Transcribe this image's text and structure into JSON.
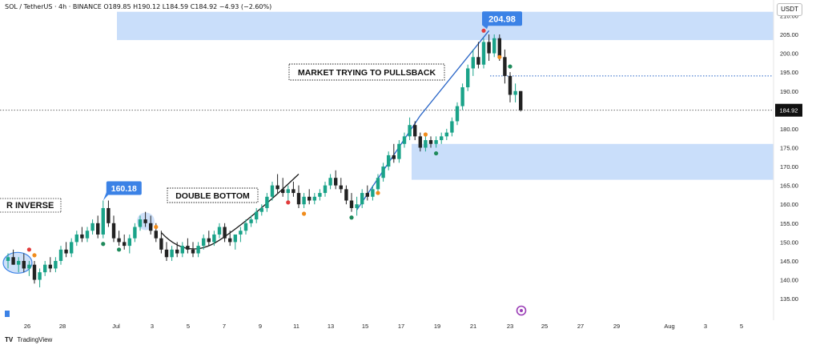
{
  "header": {
    "symbol": "SOL / TetherUS · 4h · BINANCE",
    "ohlc": "O189.85 H190.12 L184.59 C184.92 −4.93 (−2.60%)"
  },
  "currency_label": "USDT",
  "brand": "TradingView",
  "colors": {
    "bull": "#1aa389",
    "bear": "#222222",
    "zone": "#c9defa",
    "callout": "#3b82e6",
    "trendline": "#2965c7",
    "arc": "#1a1a1a",
    "marker_red": "#e23b3b",
    "marker_orange": "#f08c1c",
    "marker_green": "#1f8a5b"
  },
  "annotations": {
    "high_label": "204.98",
    "low_label": "160.18",
    "double_bottom": "DOUBLE BOTTOM",
    "pullback": "MARKET TRYING TO PULLSBACK",
    "inverse": "R INVERSE",
    "last_price": "184.92"
  },
  "chart_data": {
    "type": "candlestick",
    "interval": "4h",
    "ylim": [
      131,
      212
    ],
    "y_ticks": [
      "210.00",
      "205.00",
      "200.00",
      "195.00",
      "190.00",
      "185.00",
      "180.00",
      "175.00",
      "170.00",
      "165.00",
      "160.00",
      "155.00",
      "150.00",
      "145.00",
      "140.00",
      "135.00"
    ],
    "x_ticks": [
      "26",
      "28",
      "Jul",
      "3",
      "5",
      "7",
      "9",
      "11",
      "13",
      "15",
      "17",
      "19",
      "21",
      "23",
      "25",
      "27",
      "29",
      "Aug",
      "3",
      "5"
    ],
    "zones": [
      [
        203.5,
        211
      ],
      [
        166.5,
        176
      ]
    ],
    "candles": [
      [
        145,
        147,
        143,
        146
      ],
      [
        146,
        148,
        144,
        144
      ],
      [
        144,
        146,
        142,
        145
      ],
      [
        145,
        147,
        142,
        143
      ],
      [
        143,
        145,
        141,
        144
      ],
      [
        144,
        145,
        139,
        140
      ],
      [
        140,
        143,
        138,
        142
      ],
      [
        142,
        145,
        141,
        144
      ],
      [
        144,
        146,
        142,
        143
      ],
      [
        143,
        146,
        142,
        145
      ],
      [
        145,
        149,
        144,
        148
      ],
      [
        148,
        150,
        146,
        147
      ],
      [
        147,
        151,
        146,
        150
      ],
      [
        150,
        153,
        149,
        152
      ],
      [
        152,
        154,
        150,
        151
      ],
      [
        151,
        154,
        150,
        153
      ],
      [
        153,
        156,
        152,
        155
      ],
      [
        155,
        157,
        151,
        152
      ],
      [
        152,
        161,
        151,
        159
      ],
      [
        159,
        161,
        154,
        155
      ],
      [
        155,
        157,
        150,
        151
      ],
      [
        151,
        153,
        149,
        150
      ],
      [
        150,
        152,
        148,
        149
      ],
      [
        149,
        152,
        147,
        151
      ],
      [
        151,
        155,
        150,
        154
      ],
      [
        154,
        157,
        153,
        156
      ],
      [
        156,
        158,
        154,
        155
      ],
      [
        155,
        157,
        152,
        153
      ],
      [
        153,
        155,
        150,
        151
      ],
      [
        151,
        153,
        147,
        148
      ],
      [
        148,
        150,
        145,
        146
      ],
      [
        146,
        149,
        145,
        148
      ],
      [
        148,
        150,
        146,
        147
      ],
      [
        147,
        150,
        146,
        149
      ],
      [
        149,
        151,
        147,
        148
      ],
      [
        148,
        150,
        146,
        147
      ],
      [
        147,
        150,
        146,
        149
      ],
      [
        149,
        152,
        148,
        151
      ],
      [
        151,
        153,
        149,
        150
      ],
      [
        150,
        153,
        149,
        152
      ],
      [
        152,
        155,
        151,
        154
      ],
      [
        154,
        155,
        150,
        151
      ],
      [
        151,
        153,
        149,
        150
      ],
      [
        150,
        152,
        148,
        152
      ],
      [
        152,
        154,
        150,
        153
      ],
      [
        153,
        156,
        152,
        155
      ],
      [
        155,
        157,
        154,
        156
      ],
      [
        156,
        159,
        155,
        158
      ],
      [
        158,
        160,
        157,
        159
      ],
      [
        159,
        163,
        158,
        162
      ],
      [
        162,
        166,
        161,
        165
      ],
      [
        165,
        168,
        163,
        164
      ],
      [
        164,
        167,
        162,
        163
      ],
      [
        163,
        165,
        161,
        164
      ],
      [
        164,
        166,
        162,
        163
      ],
      [
        163,
        165,
        159,
        160
      ],
      [
        160,
        163,
        159,
        162
      ],
      [
        162,
        164,
        160,
        161
      ],
      [
        161,
        163,
        160,
        162
      ],
      [
        162,
        164,
        161,
        163
      ],
      [
        163,
        166,
        162,
        165
      ],
      [
        165,
        168,
        164,
        167
      ],
      [
        167,
        169,
        164,
        165
      ],
      [
        165,
        167,
        163,
        164
      ],
      [
        164,
        165,
        160,
        161
      ],
      [
        161,
        163,
        158,
        159
      ],
      [
        159,
        162,
        157,
        160
      ],
      [
        160,
        164,
        159,
        163
      ],
      [
        163,
        165,
        161,
        162
      ],
      [
        162,
        165,
        161,
        164
      ],
      [
        164,
        168,
        163,
        167
      ],
      [
        167,
        171,
        166,
        170
      ],
      [
        170,
        174,
        169,
        173
      ],
      [
        173,
        176,
        171,
        172
      ],
      [
        172,
        177,
        171,
        176
      ],
      [
        176,
        179,
        175,
        178
      ],
      [
        178,
        183,
        177,
        181
      ],
      [
        181,
        182,
        177,
        178
      ],
      [
        178,
        179,
        174,
        175
      ],
      [
        175,
        178,
        174,
        177
      ],
      [
        177,
        178,
        175,
        176
      ],
      [
        176,
        178,
        175,
        177
      ],
      [
        177,
        179,
        176,
        178
      ],
      [
        178,
        180,
        177,
        179
      ],
      [
        179,
        183,
        178,
        182
      ],
      [
        182,
        187,
        181,
        186
      ],
      [
        186,
        192,
        185,
        191
      ],
      [
        191,
        197,
        190,
        196
      ],
      [
        196,
        201,
        194,
        199
      ],
      [
        199,
        203,
        196,
        197
      ],
      [
        197,
        204,
        196,
        203
      ],
      [
        203,
        205,
        198,
        200
      ],
      [
        200,
        205,
        199,
        204
      ],
      [
        204,
        205,
        198,
        199
      ],
      [
        199,
        201,
        192,
        194
      ],
      [
        194,
        195,
        187,
        189
      ],
      [
        189,
        192,
        187,
        190
      ],
      [
        190,
        190,
        184.59,
        184.92
      ]
    ],
    "markers": [
      {
        "i": 4,
        "y": 148,
        "color": "marker_red"
      },
      {
        "i": 5,
        "y": 146.5,
        "color": "marker_orange"
      },
      {
        "i": 18,
        "y": 149.5,
        "color": "marker_green"
      },
      {
        "i": 21,
        "y": 148,
        "color": "marker_green"
      },
      {
        "i": 28,
        "y": 154,
        "color": "marker_orange"
      },
      {
        "i": 53,
        "y": 160.5,
        "color": "marker_red"
      },
      {
        "i": 56,
        "y": 157.5,
        "color": "marker_orange"
      },
      {
        "i": 65,
        "y": 156.5,
        "color": "marker_green"
      },
      {
        "i": 70,
        "y": 163,
        "color": "marker_orange"
      },
      {
        "i": 79,
        "y": 178.5,
        "color": "marker_orange"
      },
      {
        "i": 81,
        "y": 173.5,
        "color": "marker_green"
      },
      {
        "i": 90,
        "y": 206,
        "color": "marker_red"
      },
      {
        "i": 93,
        "y": 199,
        "color": "marker_orange"
      },
      {
        "i": 95,
        "y": 196.5,
        "color": "marker_green"
      }
    ]
  }
}
